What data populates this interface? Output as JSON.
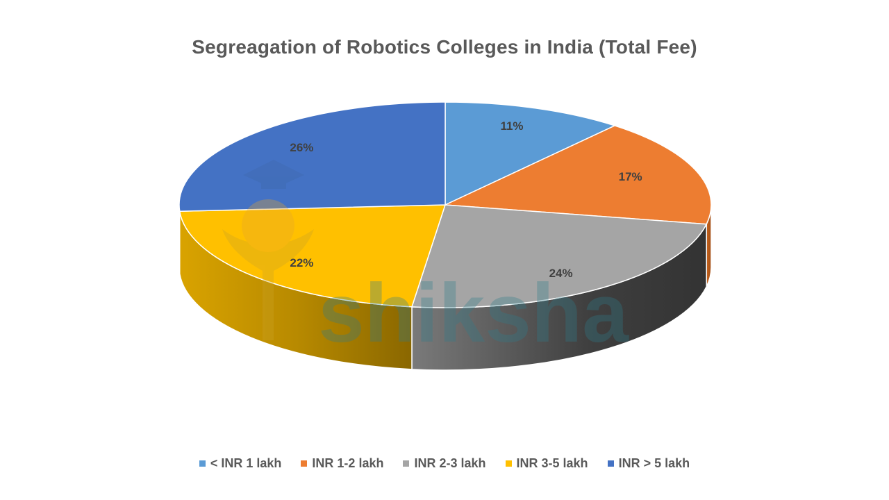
{
  "chart_data": {
    "type": "pie",
    "title": "Segreagation of Robotics Colleges in India (Total Fee)",
    "categories": [
      "< INR 1 lakh",
      "INR 1-2 lakh",
      "INR 2-3 lakh",
      "INR 3-5 lakh",
      "INR > 5 lakh"
    ],
    "values": [
      11,
      17,
      24,
      22,
      26
    ],
    "value_labels": [
      "11%",
      "17%",
      "24%",
      "22%",
      "26%"
    ],
    "colors": [
      "#5B9BD5",
      "#ED7D31",
      "#A5A5A5",
      "#FFC000",
      "#4472C4"
    ],
    "style": "3d",
    "legend_position": "bottom"
  },
  "watermark": {
    "text": "shiksha",
    "icon": "graduation-cap-icon"
  }
}
